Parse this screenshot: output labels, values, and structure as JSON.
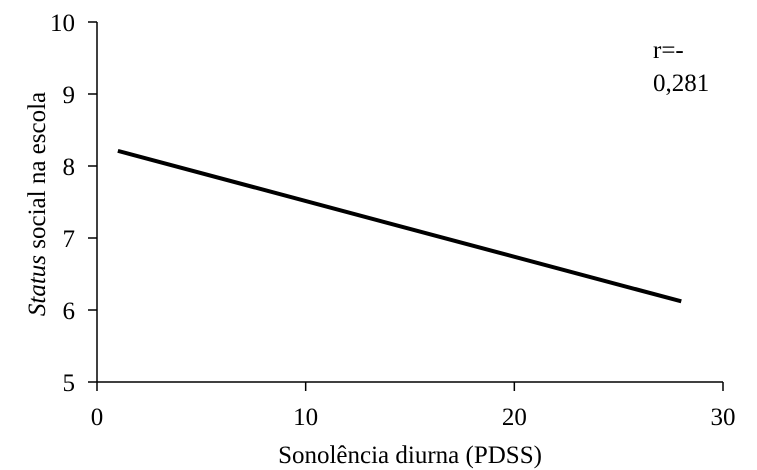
{
  "chart_data": {
    "type": "line",
    "title": "",
    "xlabel": "Sonolência diurna (PDSS)",
    "ylabel_italic": "Status",
    "ylabel_rest": " social na escola",
    "xlim": [
      0,
      30
    ],
    "ylim": [
      5,
      10
    ],
    "xticks": [
      0,
      10,
      20,
      30
    ],
    "yticks": [
      5,
      6,
      7,
      8,
      9,
      10
    ],
    "grid": false,
    "legend": "none",
    "series": [
      {
        "x": [
          1,
          28
        ],
        "y": [
          8.21,
          6.12
        ],
        "color": "#000000"
      }
    ],
    "annotation": {
      "line1": "r=-",
      "line2": "0,281"
    }
  }
}
